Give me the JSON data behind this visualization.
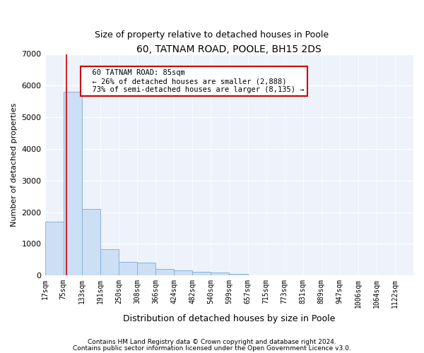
{
  "title": "60, TATNAM ROAD, POOLE, BH15 2DS",
  "subtitle": "Size of property relative to detached houses in Poole",
  "xlabel": "Distribution of detached houses by size in Poole",
  "ylabel": "Number of detached properties",
  "annotation_line1": "60 TATNAM ROAD: 85sqm",
  "annotation_line2": "← 26% of detached houses are smaller (2,888)",
  "annotation_line3": "73% of semi-detached houses are larger (8,135) →",
  "footer_line1": "Contains HM Land Registry data © Crown copyright and database right 2024.",
  "footer_line2": "Contains public sector information licensed under the Open Government Licence v3.0.",
  "bar_color": "#ccdff5",
  "bar_edge_color": "#85b4d8",
  "redline_color": "#cc0000",
  "redline_x": 85,
  "bins": [
    17,
    75,
    133,
    191,
    250,
    308,
    366,
    424,
    482,
    540,
    599,
    657,
    715,
    773,
    831,
    889,
    947,
    1006,
    1064,
    1122,
    1180
  ],
  "values": [
    1700,
    5800,
    2100,
    830,
    420,
    400,
    200,
    155,
    110,
    90,
    55,
    8,
    4,
    2,
    1,
    1,
    0,
    0,
    0,
    0
  ],
  "ylim": [
    0,
    7000
  ],
  "yticks": [
    0,
    1000,
    2000,
    3000,
    4000,
    5000,
    6000,
    7000
  ],
  "bg_color": "#edf2fb",
  "grid_color": "#ffffff",
  "title_fontsize": 10,
  "subtitle_fontsize": 9,
  "ylabel_fontsize": 8,
  "xlabel_fontsize": 9,
  "tick_fontsize": 7,
  "annotation_fontsize": 7.5,
  "footer_fontsize": 6.5
}
